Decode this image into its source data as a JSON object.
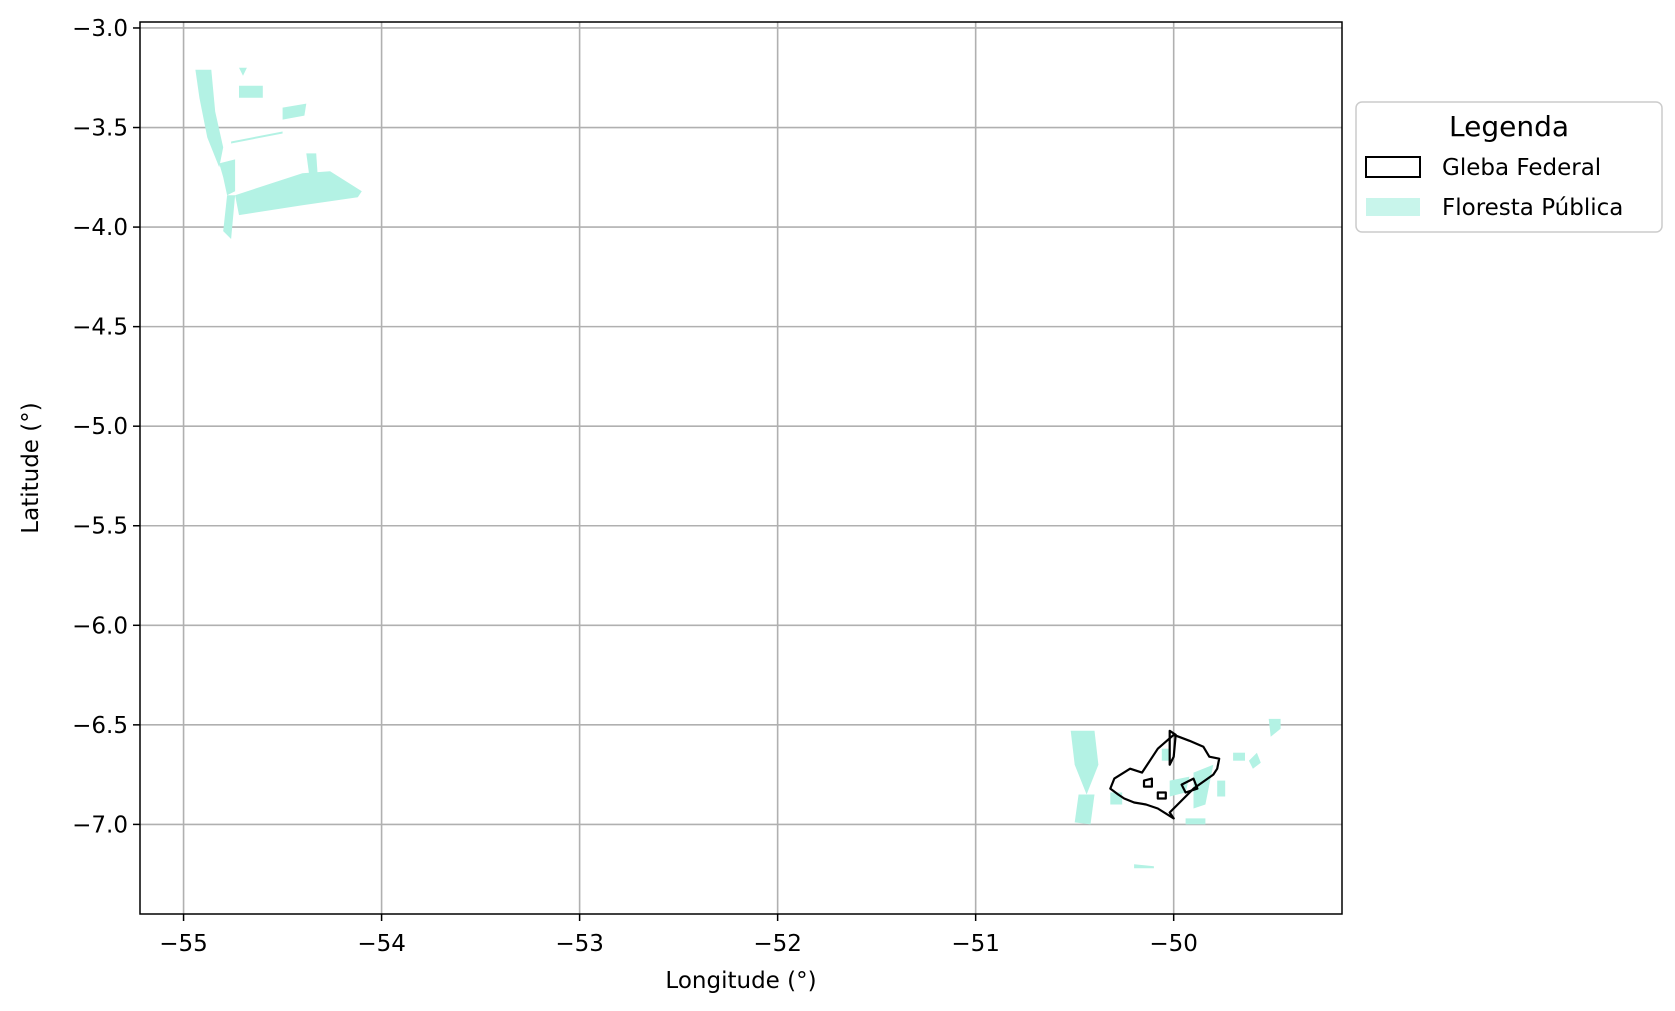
{
  "chart_data": {
    "type": "map",
    "title": "",
    "xlabel": "Longitude (°)",
    "ylabel": "Latitude (°)",
    "xlim": [
      -55.22,
      -49.15
    ],
    "ylim": [
      -7.45,
      -2.97
    ],
    "grid": true,
    "x_ticks": [
      -55,
      -54,
      -53,
      -52,
      -51,
      -50
    ],
    "y_ticks": [
      -3.0,
      -3.5,
      -4.0,
      -4.5,
      -5.0,
      -5.5,
      -6.0,
      -6.5,
      -7.0
    ],
    "x_tick_labels": [
      "−55",
      "−54",
      "−53",
      "−52",
      "−51",
      "−50"
    ],
    "y_tick_labels": [
      "−3.0",
      "−3.5",
      "−4.0",
      "−4.5",
      "−5.0",
      "−5.5",
      "−6.0",
      "−6.5",
      "−7.0"
    ],
    "legend": {
      "title": "Legenda",
      "placement": "outside-upper-right",
      "entries": [
        {
          "label": "Gleba Federal",
          "style": "outline",
          "color": "#000000"
        },
        {
          "label": "Floresta Pública",
          "style": "fill",
          "color": "#b3f2e4"
        }
      ]
    },
    "colors": {
      "floresta_publica": "#b3f2e4",
      "gleba_federal": "#000000",
      "grid": "#b0b0b0"
    },
    "layers": {
      "floresta_publica": [
        [
          [
            -54.94,
            -3.21
          ],
          [
            -54.86,
            -3.21
          ],
          [
            -54.84,
            -3.42
          ],
          [
            -54.8,
            -3.6
          ],
          [
            -54.82,
            -3.7
          ],
          [
            -54.88,
            -3.55
          ],
          [
            -54.92,
            -3.35
          ]
        ],
        [
          [
            -54.82,
            -3.68
          ],
          [
            -54.74,
            -3.66
          ],
          [
            -54.74,
            -3.82
          ],
          [
            -54.78,
            -3.84
          ],
          [
            -54.8,
            -3.75
          ]
        ],
        [
          [
            -54.78,
            -3.84
          ],
          [
            -54.74,
            -3.84
          ],
          [
            -54.76,
            -4.06
          ],
          [
            -54.8,
            -4.02
          ]
        ],
        [
          [
            -54.74,
            -3.84
          ],
          [
            -54.4,
            -3.73
          ],
          [
            -54.26,
            -3.72
          ],
          [
            -54.1,
            -3.82
          ],
          [
            -54.12,
            -3.85
          ],
          [
            -54.4,
            -3.89
          ],
          [
            -54.72,
            -3.94
          ]
        ],
        [
          [
            -54.38,
            -3.63
          ],
          [
            -54.33,
            -3.63
          ],
          [
            -54.32,
            -3.78
          ],
          [
            -54.36,
            -3.78
          ]
        ],
        [
          [
            -54.72,
            -3.29
          ],
          [
            -54.6,
            -3.29
          ],
          [
            -54.6,
            -3.35
          ],
          [
            -54.72,
            -3.35
          ]
        ],
        [
          [
            -54.72,
            -3.2
          ],
          [
            -54.68,
            -3.2
          ],
          [
            -54.7,
            -3.24
          ]
        ],
        [
          [
            -54.5,
            -3.4
          ],
          [
            -54.38,
            -3.38
          ],
          [
            -54.39,
            -3.44
          ],
          [
            -54.5,
            -3.46
          ]
        ],
        [
          [
            -54.76,
            -3.57
          ],
          [
            -54.5,
            -3.52
          ],
          [
            -54.5,
            -3.53
          ],
          [
            -54.76,
            -3.58
          ]
        ],
        [
          [
            -50.52,
            -6.53
          ],
          [
            -50.4,
            -6.53
          ],
          [
            -50.38,
            -6.7
          ],
          [
            -50.44,
            -6.85
          ],
          [
            -50.5,
            -6.7
          ]
        ],
        [
          [
            -50.48,
            -6.85
          ],
          [
            -50.4,
            -6.85
          ],
          [
            -50.42,
            -7.0
          ],
          [
            -50.5,
            -6.99
          ]
        ],
        [
          [
            -50.32,
            -6.84
          ],
          [
            -50.26,
            -6.84
          ],
          [
            -50.26,
            -6.9
          ],
          [
            -50.32,
            -6.9
          ]
        ],
        [
          [
            -50.02,
            -6.78
          ],
          [
            -49.92,
            -6.76
          ],
          [
            -49.94,
            -6.84
          ],
          [
            -50.02,
            -6.86
          ]
        ],
        [
          [
            -49.9,
            -6.74
          ],
          [
            -49.8,
            -6.7
          ],
          [
            -49.84,
            -6.9
          ],
          [
            -49.9,
            -6.92
          ]
        ],
        [
          [
            -49.78,
            -6.78
          ],
          [
            -49.74,
            -6.78
          ],
          [
            -49.74,
            -6.86
          ],
          [
            -49.78,
            -6.86
          ]
        ],
        [
          [
            -49.7,
            -6.64
          ],
          [
            -49.64,
            -6.64
          ],
          [
            -49.64,
            -6.68
          ],
          [
            -49.7,
            -6.68
          ]
        ],
        [
          [
            -49.62,
            -6.68
          ],
          [
            -49.58,
            -6.64
          ],
          [
            -49.56,
            -6.69
          ],
          [
            -49.6,
            -6.72
          ]
        ],
        [
          [
            -49.52,
            -6.47
          ],
          [
            -49.46,
            -6.47
          ],
          [
            -49.46,
            -6.52
          ],
          [
            -49.51,
            -6.56
          ]
        ],
        [
          [
            -50.06,
            -6.62
          ],
          [
            -50.02,
            -6.62
          ],
          [
            -50.02,
            -6.68
          ],
          [
            -50.06,
            -6.68
          ]
        ],
        [
          [
            -49.94,
            -6.97
          ],
          [
            -49.84,
            -6.97
          ],
          [
            -49.84,
            -7.0
          ],
          [
            -49.94,
            -7.0
          ]
        ],
        [
          [
            -50.2,
            -7.2
          ],
          [
            -50.1,
            -7.21
          ],
          [
            -50.1,
            -7.22
          ],
          [
            -50.2,
            -7.22
          ]
        ]
      ],
      "gleba_federal": [
        [
          [
            -50.3,
            -6.77
          ],
          [
            -50.22,
            -6.72
          ],
          [
            -50.16,
            -6.74
          ],
          [
            -50.12,
            -6.68
          ],
          [
            -50.08,
            -6.62
          ],
          [
            -50.0,
            -6.55
          ],
          [
            -49.92,
            -6.58
          ],
          [
            -49.85,
            -6.61
          ],
          [
            -49.82,
            -6.66
          ],
          [
            -49.77,
            -6.67
          ],
          [
            -49.78,
            -6.72
          ],
          [
            -49.8,
            -6.75
          ],
          [
            -49.9,
            -6.82
          ],
          [
            -50.02,
            -6.94
          ],
          [
            -50.0,
            -6.97
          ],
          [
            -50.08,
            -6.92
          ],
          [
            -50.14,
            -6.9
          ],
          [
            -50.2,
            -6.89
          ],
          [
            -50.25,
            -6.87
          ],
          [
            -50.28,
            -6.85
          ],
          [
            -50.32,
            -6.82
          ]
        ],
        [
          [
            -50.15,
            -6.78
          ],
          [
            -50.11,
            -6.77
          ],
          [
            -50.11,
            -6.81
          ],
          [
            -50.15,
            -6.81
          ]
        ],
        [
          [
            -50.08,
            -6.84
          ],
          [
            -50.04,
            -6.84
          ],
          [
            -50.04,
            -6.87
          ],
          [
            -50.08,
            -6.87
          ]
        ],
        [
          [
            -50.02,
            -6.53
          ],
          [
            -49.99,
            -6.55
          ],
          [
            -50.0,
            -6.66
          ],
          [
            -50.02,
            -6.7
          ]
        ],
        [
          [
            -49.96,
            -6.8
          ],
          [
            -49.9,
            -6.77
          ],
          [
            -49.88,
            -6.82
          ],
          [
            -49.94,
            -6.84
          ]
        ]
      ]
    }
  }
}
